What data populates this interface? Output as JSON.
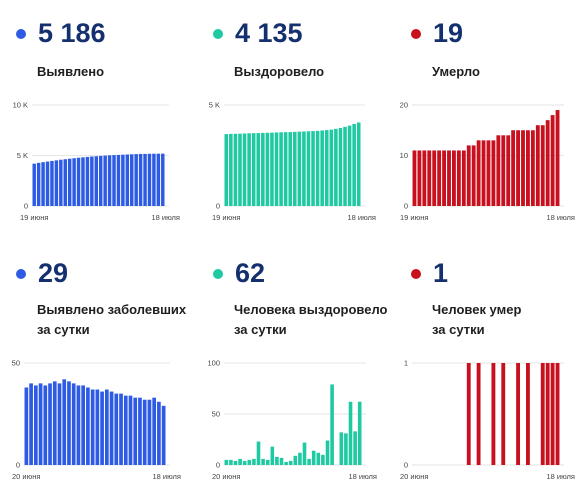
{
  "colors": {
    "blue": "#2d5be3",
    "green": "#1fc9a1",
    "red": "#c8101f",
    "number": "#14306e",
    "grid": "#e6e6e6"
  },
  "panels": [
    {
      "number": "5 186",
      "label_lines": [
        "Выявлено"
      ],
      "color": "#2d5be3",
      "chart_data": {
        "type": "bar",
        "x_start_label": "19 июня",
        "x_end_label": "18 июля",
        "y_ticks": [
          {
            "v": 0,
            "t": "0"
          },
          {
            "v": 5000,
            "t": "5 K"
          },
          {
            "v": 10000,
            "t": "10 K"
          }
        ],
        "ylim": [
          0,
          10000
        ],
        "values": [
          4190,
          4270,
          4340,
          4400,
          4460,
          4520,
          4580,
          4630,
          4680,
          4730,
          4780,
          4820,
          4860,
          4900,
          4930,
          4960,
          4990,
          5020,
          5040,
          5060,
          5080,
          5100,
          5120,
          5140,
          5150,
          5160,
          5170,
          5176,
          5182,
          5186
        ]
      }
    },
    {
      "number": "4 135",
      "label_lines": [
        "Выздоровело"
      ],
      "color": "#1fc9a1",
      "chart_data": {
        "type": "bar",
        "x_start_label": "19 июня",
        "x_end_label": "18 июля",
        "y_ticks": [
          {
            "v": 0,
            "t": "0"
          },
          {
            "v": 5000,
            "t": "5 K"
          }
        ],
        "ylim": [
          0,
          5000
        ],
        "values": [
          3560,
          3570,
          3575,
          3580,
          3590,
          3600,
          3605,
          3610,
          3620,
          3625,
          3630,
          3640,
          3650,
          3655,
          3660,
          3670,
          3680,
          3690,
          3700,
          3710,
          3720,
          3740,
          3760,
          3780,
          3820,
          3860,
          3920,
          3980,
          4060,
          4135
        ]
      }
    },
    {
      "number": "19",
      "label_lines": [
        "Умерло"
      ],
      "color": "#c8101f",
      "chart_data": {
        "type": "bar",
        "x_start_label": "19 июня",
        "x_end_label": "18 июля",
        "y_ticks": [
          {
            "v": 0,
            "t": "0"
          },
          {
            "v": 10,
            "t": "10"
          },
          {
            "v": 20,
            "t": "20"
          }
        ],
        "ylim": [
          0,
          20
        ],
        "values": [
          11,
          11,
          11,
          11,
          11,
          11,
          11,
          11,
          11,
          11,
          11,
          12,
          12,
          13,
          13,
          13,
          13,
          14,
          14,
          14,
          15,
          15,
          15,
          15,
          15,
          16,
          16,
          17,
          18,
          19
        ]
      }
    },
    {
      "number": "29",
      "label_lines": [
        "Выявлено заболевших",
        "за сутки"
      ],
      "color": "#2d5be3",
      "chart_data": {
        "type": "bar",
        "x_start_label": "20 июня",
        "x_end_label": "18 июля",
        "y_ticks": [
          {
            "v": 0,
            "t": "0"
          },
          {
            "v": 50,
            "t": "50"
          }
        ],
        "ylim": [
          0,
          50
        ],
        "values": [
          38,
          40,
          39,
          40,
          39,
          40,
          41,
          40,
          42,
          41,
          40,
          39,
          39,
          38,
          37,
          37,
          36,
          37,
          36,
          35,
          35,
          34,
          34,
          33,
          33,
          32,
          32,
          33,
          31,
          29
        ]
      }
    },
    {
      "number": "62",
      "label_lines": [
        "Человека выздоровело",
        "за сутки"
      ],
      "color": "#1fc9a1",
      "chart_data": {
        "type": "bar",
        "x_start_label": "20 июня",
        "x_end_label": "18 июля",
        "y_ticks": [
          {
            "v": 0,
            "t": "0"
          },
          {
            "v": 50,
            "t": "50"
          },
          {
            "v": 100,
            "t": "100"
          }
        ],
        "ylim": [
          0,
          100
        ],
        "values": [
          5,
          5,
          4,
          6,
          4,
          5,
          6,
          23,
          6,
          5,
          18,
          8,
          7,
          3,
          4,
          9,
          12,
          22,
          6,
          14,
          12,
          10,
          24,
          79,
          0,
          32,
          31,
          62,
          33,
          62
        ]
      }
    },
    {
      "number": "1",
      "label_lines": [
        "Человек умер",
        "за сутки"
      ],
      "color": "#c8101f",
      "chart_data": {
        "type": "bar",
        "x_start_label": "20 июня",
        "x_end_label": "18 июля",
        "y_ticks": [
          {
            "v": 0,
            "t": "0"
          },
          {
            "v": 1,
            "t": "1"
          }
        ],
        "ylim": [
          0,
          1
        ],
        "values": [
          0,
          0,
          0,
          0,
          0,
          0,
          0,
          0,
          0,
          0,
          0,
          1,
          0,
          1,
          0,
          0,
          1,
          0,
          1,
          0,
          0,
          1,
          0,
          1,
          0,
          0,
          1,
          1,
          1,
          1
        ]
      }
    }
  ]
}
